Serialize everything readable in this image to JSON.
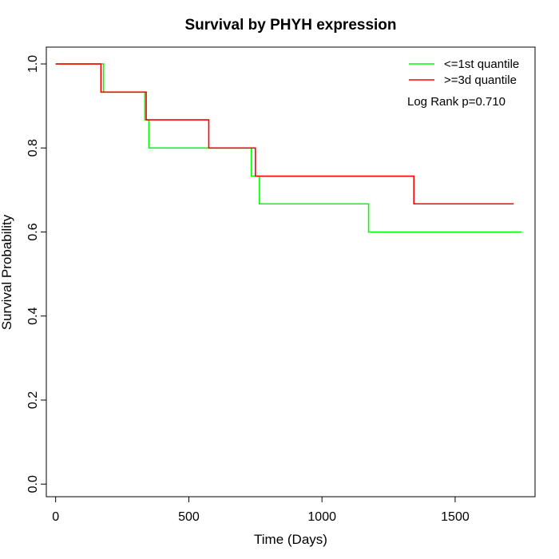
{
  "chart_data": {
    "type": "line",
    "step": true,
    "title": "Survival by PHYH expression",
    "xlabel": "Time (Days)",
    "ylabel": "Survival Probability",
    "xlim": [
      -35,
      1800
    ],
    "ylim": [
      -0.03,
      1.04
    ],
    "xticks": [
      0,
      500,
      1000,
      1500
    ],
    "yticks": [
      0.0,
      0.2,
      0.4,
      0.6,
      0.8,
      1.0
    ],
    "xtick_labels": [
      "0",
      "500",
      "1000",
      "1500"
    ],
    "ytick_labels": [
      "0.0",
      "0.2",
      "0.4",
      "0.6",
      "0.8",
      "1.0"
    ],
    "grid": false,
    "legend_position": "top-right",
    "annotation": "Log Rank p=0.710",
    "series": [
      {
        "name": "<=1st quantile",
        "color": "#00ff00",
        "x": [
          0,
          180,
          335,
          350,
          735,
          765,
          1175,
          1750
        ],
        "y": [
          1.0,
          0.933,
          0.867,
          0.8,
          0.733,
          0.667,
          0.6,
          0.6
        ]
      },
      {
        "name": ">=3d quantile",
        "color": "#ff0000",
        "x": [
          0,
          170,
          340,
          575,
          750,
          1345,
          1720
        ],
        "y": [
          1.0,
          0.933,
          0.867,
          0.8,
          0.733,
          0.667,
          0.667
        ]
      }
    ]
  }
}
